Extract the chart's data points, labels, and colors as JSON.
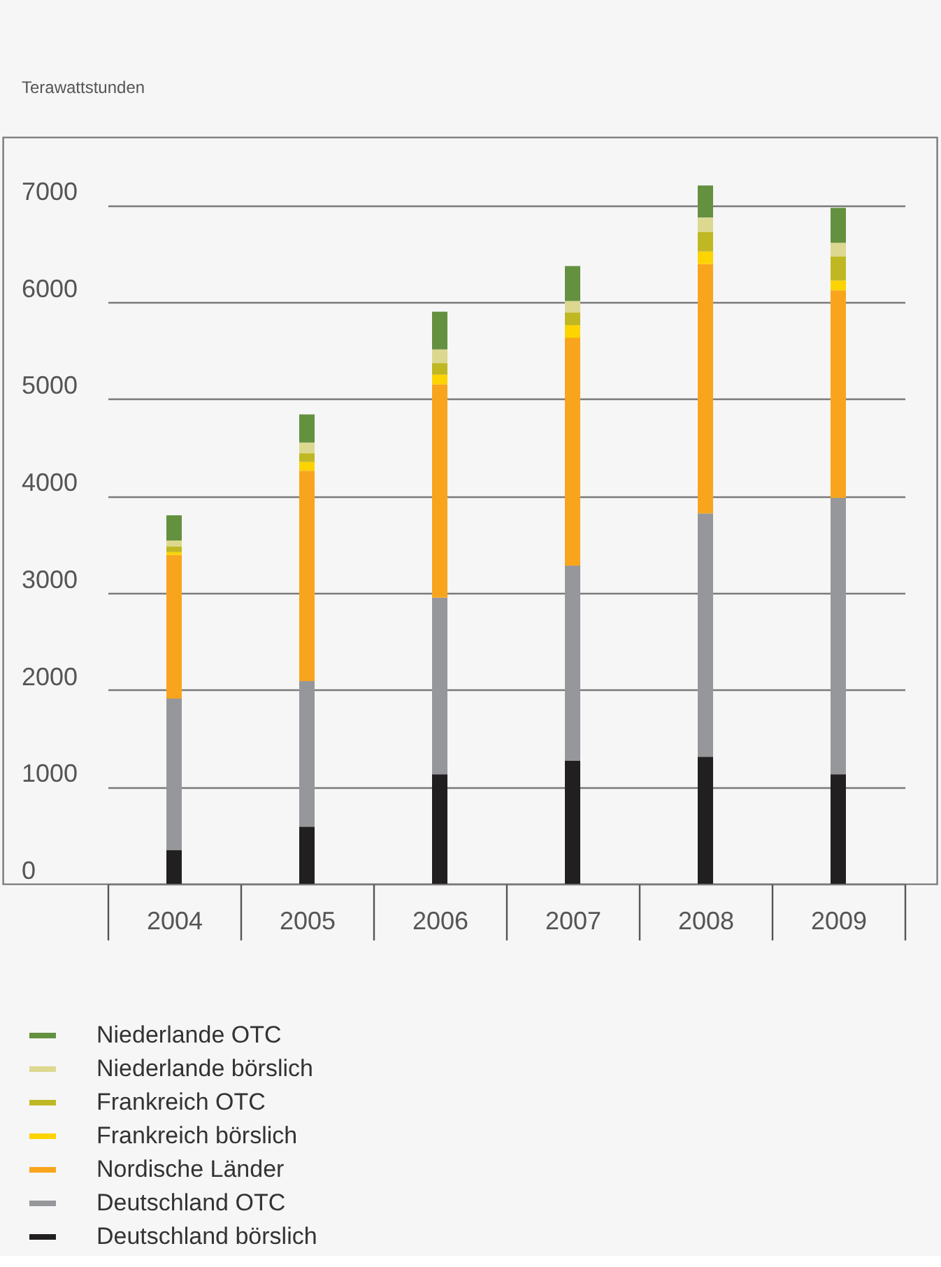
{
  "chart_data": {
    "type": "bar",
    "stacked": true,
    "ylabel": "Terawattstunden",
    "categories": [
      "2004",
      "2005",
      "2006",
      "2007",
      "2008",
      "2009"
    ],
    "series": [
      {
        "name": "Deutschland börslich",
        "color": "#221f20",
        "values": [
          350,
          590,
          1130,
          1270,
          1310,
          1130
        ]
      },
      {
        "name": "Deutschland OTC",
        "color": "#96979a",
        "values": [
          1560,
          1500,
          1820,
          2010,
          2510,
          2850
        ]
      },
      {
        "name": "Nordische Länder",
        "color": "#f8a51d",
        "values": [
          1480,
          2170,
          2200,
          2350,
          2570,
          2140
        ]
      },
      {
        "name": "Frankreich börslich",
        "color": "#fdd300",
        "values": [
          30,
          90,
          100,
          130,
          130,
          100
        ]
      },
      {
        "name": "Frankreich OTC",
        "color": "#c0b823",
        "values": [
          60,
          90,
          120,
          130,
          200,
          250
        ]
      },
      {
        "name": "Niederlande börslich",
        "color": "#dcd890",
        "values": [
          60,
          110,
          140,
          120,
          150,
          140
        ]
      },
      {
        "name": "Niederlande OTC",
        "color": "#649140",
        "values": [
          260,
          290,
          390,
          360,
          330,
          360
        ]
      }
    ],
    "ylim": [
      0,
      7700
    ],
    "yticks": [
      0,
      1000,
      2000,
      3000,
      4000,
      5000,
      6000,
      7000
    ],
    "grid": "y",
    "legend": "bottom"
  }
}
